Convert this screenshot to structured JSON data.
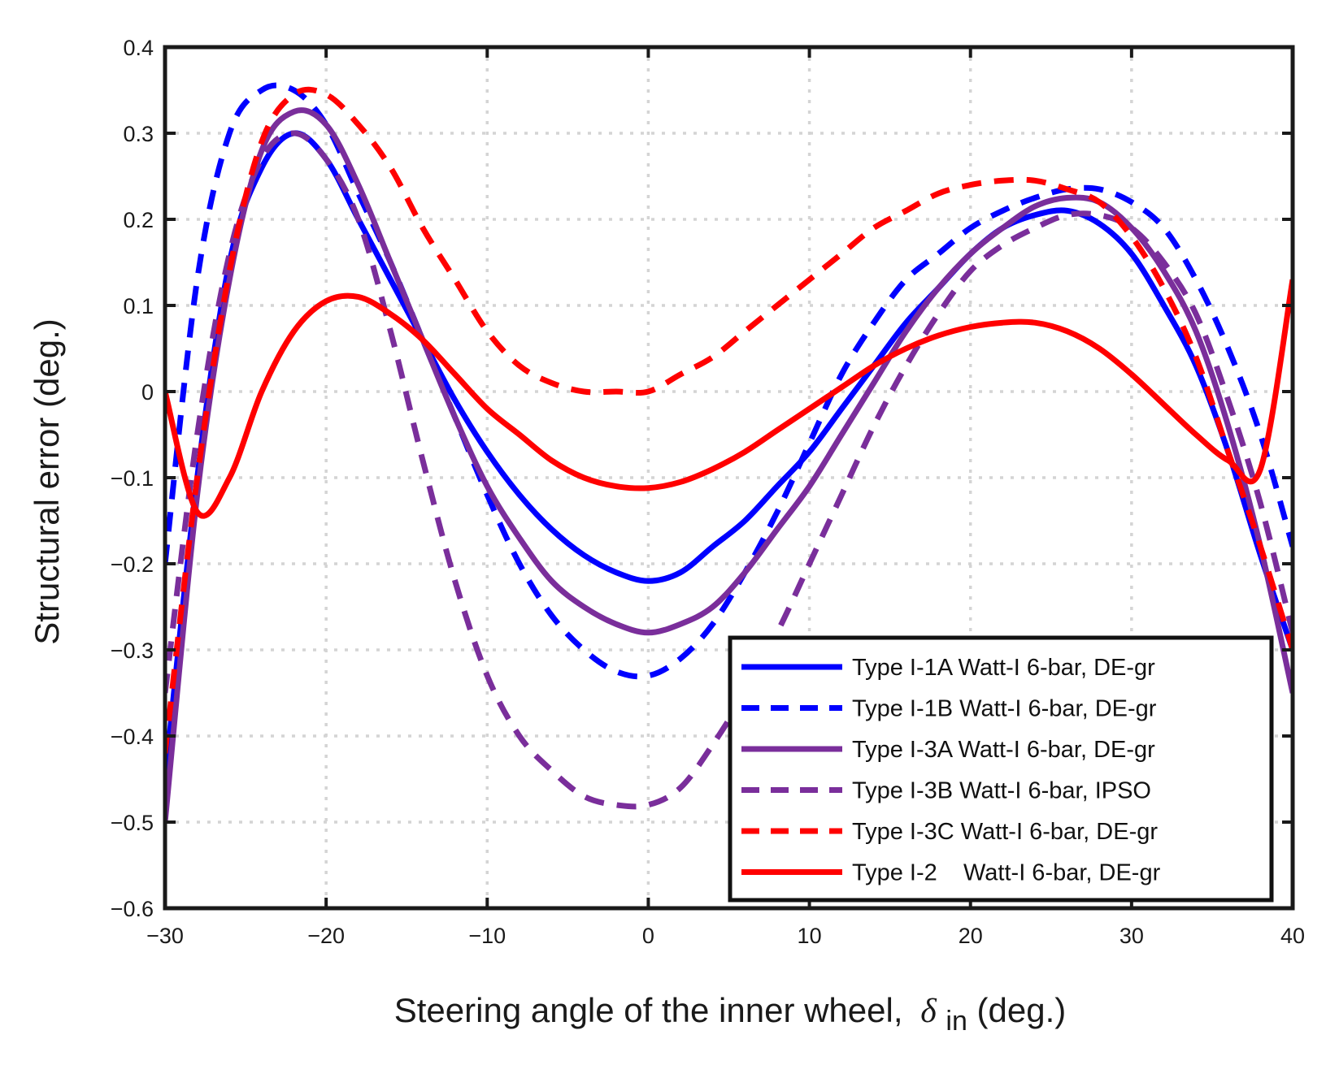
{
  "chart_data": {
    "type": "line",
    "title": "",
    "xlabel": {
      "prefix": "Steering angle of the inner wheel,",
      "symbol": "δ",
      "subscript": "in",
      "suffix": "(deg.)"
    },
    "ylabel": "Structural error (deg.)",
    "xlim": [
      -30,
      40
    ],
    "ylim": [
      -0.6,
      0.4
    ],
    "xticks": [
      -30,
      -20,
      -10,
      0,
      10,
      20,
      30,
      40
    ],
    "yticks": [
      -0.6,
      -0.5,
      -0.4,
      -0.3,
      -0.2,
      -0.1,
      0,
      0.1,
      0.2,
      0.3,
      0.4
    ],
    "xtick_labels": [
      "−30",
      "−20",
      "−10",
      "0",
      "10",
      "20",
      "30",
      "40"
    ],
    "ytick_labels": [
      "−0.6",
      "−0.5",
      "−0.4",
      "−0.3",
      "−0.2",
      "−0.1",
      "0",
      "0.1",
      "0.2",
      "0.3",
      "0.4"
    ],
    "grid": true,
    "legend_position": "bottom-right",
    "x": [
      -30,
      -28,
      -26,
      -24,
      -22,
      -20,
      -18,
      -16,
      -14,
      -12,
      -10,
      -8,
      -6,
      -4,
      -2,
      0,
      2,
      4,
      6,
      8,
      10,
      12,
      14,
      16,
      18,
      20,
      22,
      24,
      26,
      28,
      30,
      32,
      34,
      36,
      38,
      40
    ],
    "series": [
      {
        "name": "Type I-1A Watt-I 6-bar, DE-gr",
        "color": "#0000ff",
        "style": "solid",
        "values": [
          -0.45,
          -0.1,
          0.15,
          0.26,
          0.3,
          0.27,
          0.2,
          0.13,
          0.06,
          -0.01,
          -0.07,
          -0.12,
          -0.16,
          -0.19,
          -0.21,
          -0.22,
          -0.21,
          -0.18,
          -0.15,
          -0.11,
          -0.07,
          -0.02,
          0.03,
          0.08,
          0.12,
          0.16,
          0.19,
          0.205,
          0.21,
          0.195,
          0.16,
          0.1,
          0.03,
          -0.07,
          -0.19,
          -0.3
        ]
      },
      {
        "name": "Type I-1B Watt-I 6-bar, DE-gr",
        "color": "#0000ff",
        "style": "dashed",
        "values": [
          -0.2,
          0.13,
          0.3,
          0.35,
          0.35,
          0.31,
          0.23,
          0.15,
          0.06,
          -0.03,
          -0.12,
          -0.2,
          -0.26,
          -0.3,
          -0.325,
          -0.33,
          -0.31,
          -0.27,
          -0.21,
          -0.14,
          -0.06,
          0.02,
          0.08,
          0.13,
          0.16,
          0.19,
          0.21,
          0.225,
          0.235,
          0.235,
          0.22,
          0.19,
          0.13,
          0.05,
          -0.05,
          -0.18
        ]
      },
      {
        "name": "Type I-3A Watt-I 6-bar, DE-gr",
        "color": "#7a2e9b",
        "style": "solid",
        "values": [
          -0.5,
          -0.12,
          0.13,
          0.28,
          0.325,
          0.31,
          0.24,
          0.15,
          0.06,
          -0.03,
          -0.11,
          -0.17,
          -0.22,
          -0.25,
          -0.27,
          -0.28,
          -0.27,
          -0.25,
          -0.21,
          -0.16,
          -0.11,
          -0.05,
          0.01,
          0.07,
          0.12,
          0.16,
          0.19,
          0.215,
          0.225,
          0.22,
          0.19,
          0.14,
          0.07,
          -0.04,
          -0.18,
          -0.35
        ]
      },
      {
        "name": "Type I-3B Watt-I 6-bar, IPSO",
        "color": "#7a2e9b",
        "style": "dashed",
        "values": [
          -0.35,
          -0.05,
          0.16,
          0.27,
          0.3,
          0.27,
          0.2,
          0.07,
          -0.08,
          -0.22,
          -0.33,
          -0.4,
          -0.44,
          -0.47,
          -0.48,
          -0.48,
          -0.46,
          -0.41,
          -0.35,
          -0.28,
          -0.2,
          -0.12,
          -0.04,
          0.03,
          0.09,
          0.14,
          0.17,
          0.19,
          0.205,
          0.205,
          0.19,
          0.15,
          0.09,
          -0.01,
          -0.13,
          -0.28
        ]
      },
      {
        "name": "Type I-3C Watt-I 6-bar, DE-gr",
        "color": "#ff0000",
        "style": "dashed",
        "values": [
          -0.42,
          -0.1,
          0.14,
          0.29,
          0.345,
          0.345,
          0.31,
          0.26,
          0.19,
          0.13,
          0.07,
          0.03,
          0.01,
          0.0,
          0.0,
          0.0,
          0.02,
          0.04,
          0.07,
          0.1,
          0.13,
          0.16,
          0.19,
          0.21,
          0.23,
          0.24,
          0.245,
          0.245,
          0.235,
          0.22,
          0.18,
          0.12,
          0.04,
          -0.07,
          -0.18,
          -0.3
        ]
      },
      {
        "name": "Type I-2    Watt-I 6-bar, DE-gr",
        "color": "#ff0000",
        "style": "solid",
        "values": [
          0.0,
          -0.14,
          -0.1,
          0.0,
          0.07,
          0.105,
          0.11,
          0.09,
          0.06,
          0.02,
          -0.02,
          -0.05,
          -0.08,
          -0.1,
          -0.11,
          -0.112,
          -0.105,
          -0.09,
          -0.07,
          -0.045,
          -0.02,
          0.005,
          0.03,
          0.05,
          0.065,
          0.075,
          0.08,
          0.08,
          0.07,
          0.05,
          0.02,
          -0.015,
          -0.05,
          -0.08,
          -0.09,
          0.13
        ]
      }
    ]
  }
}
